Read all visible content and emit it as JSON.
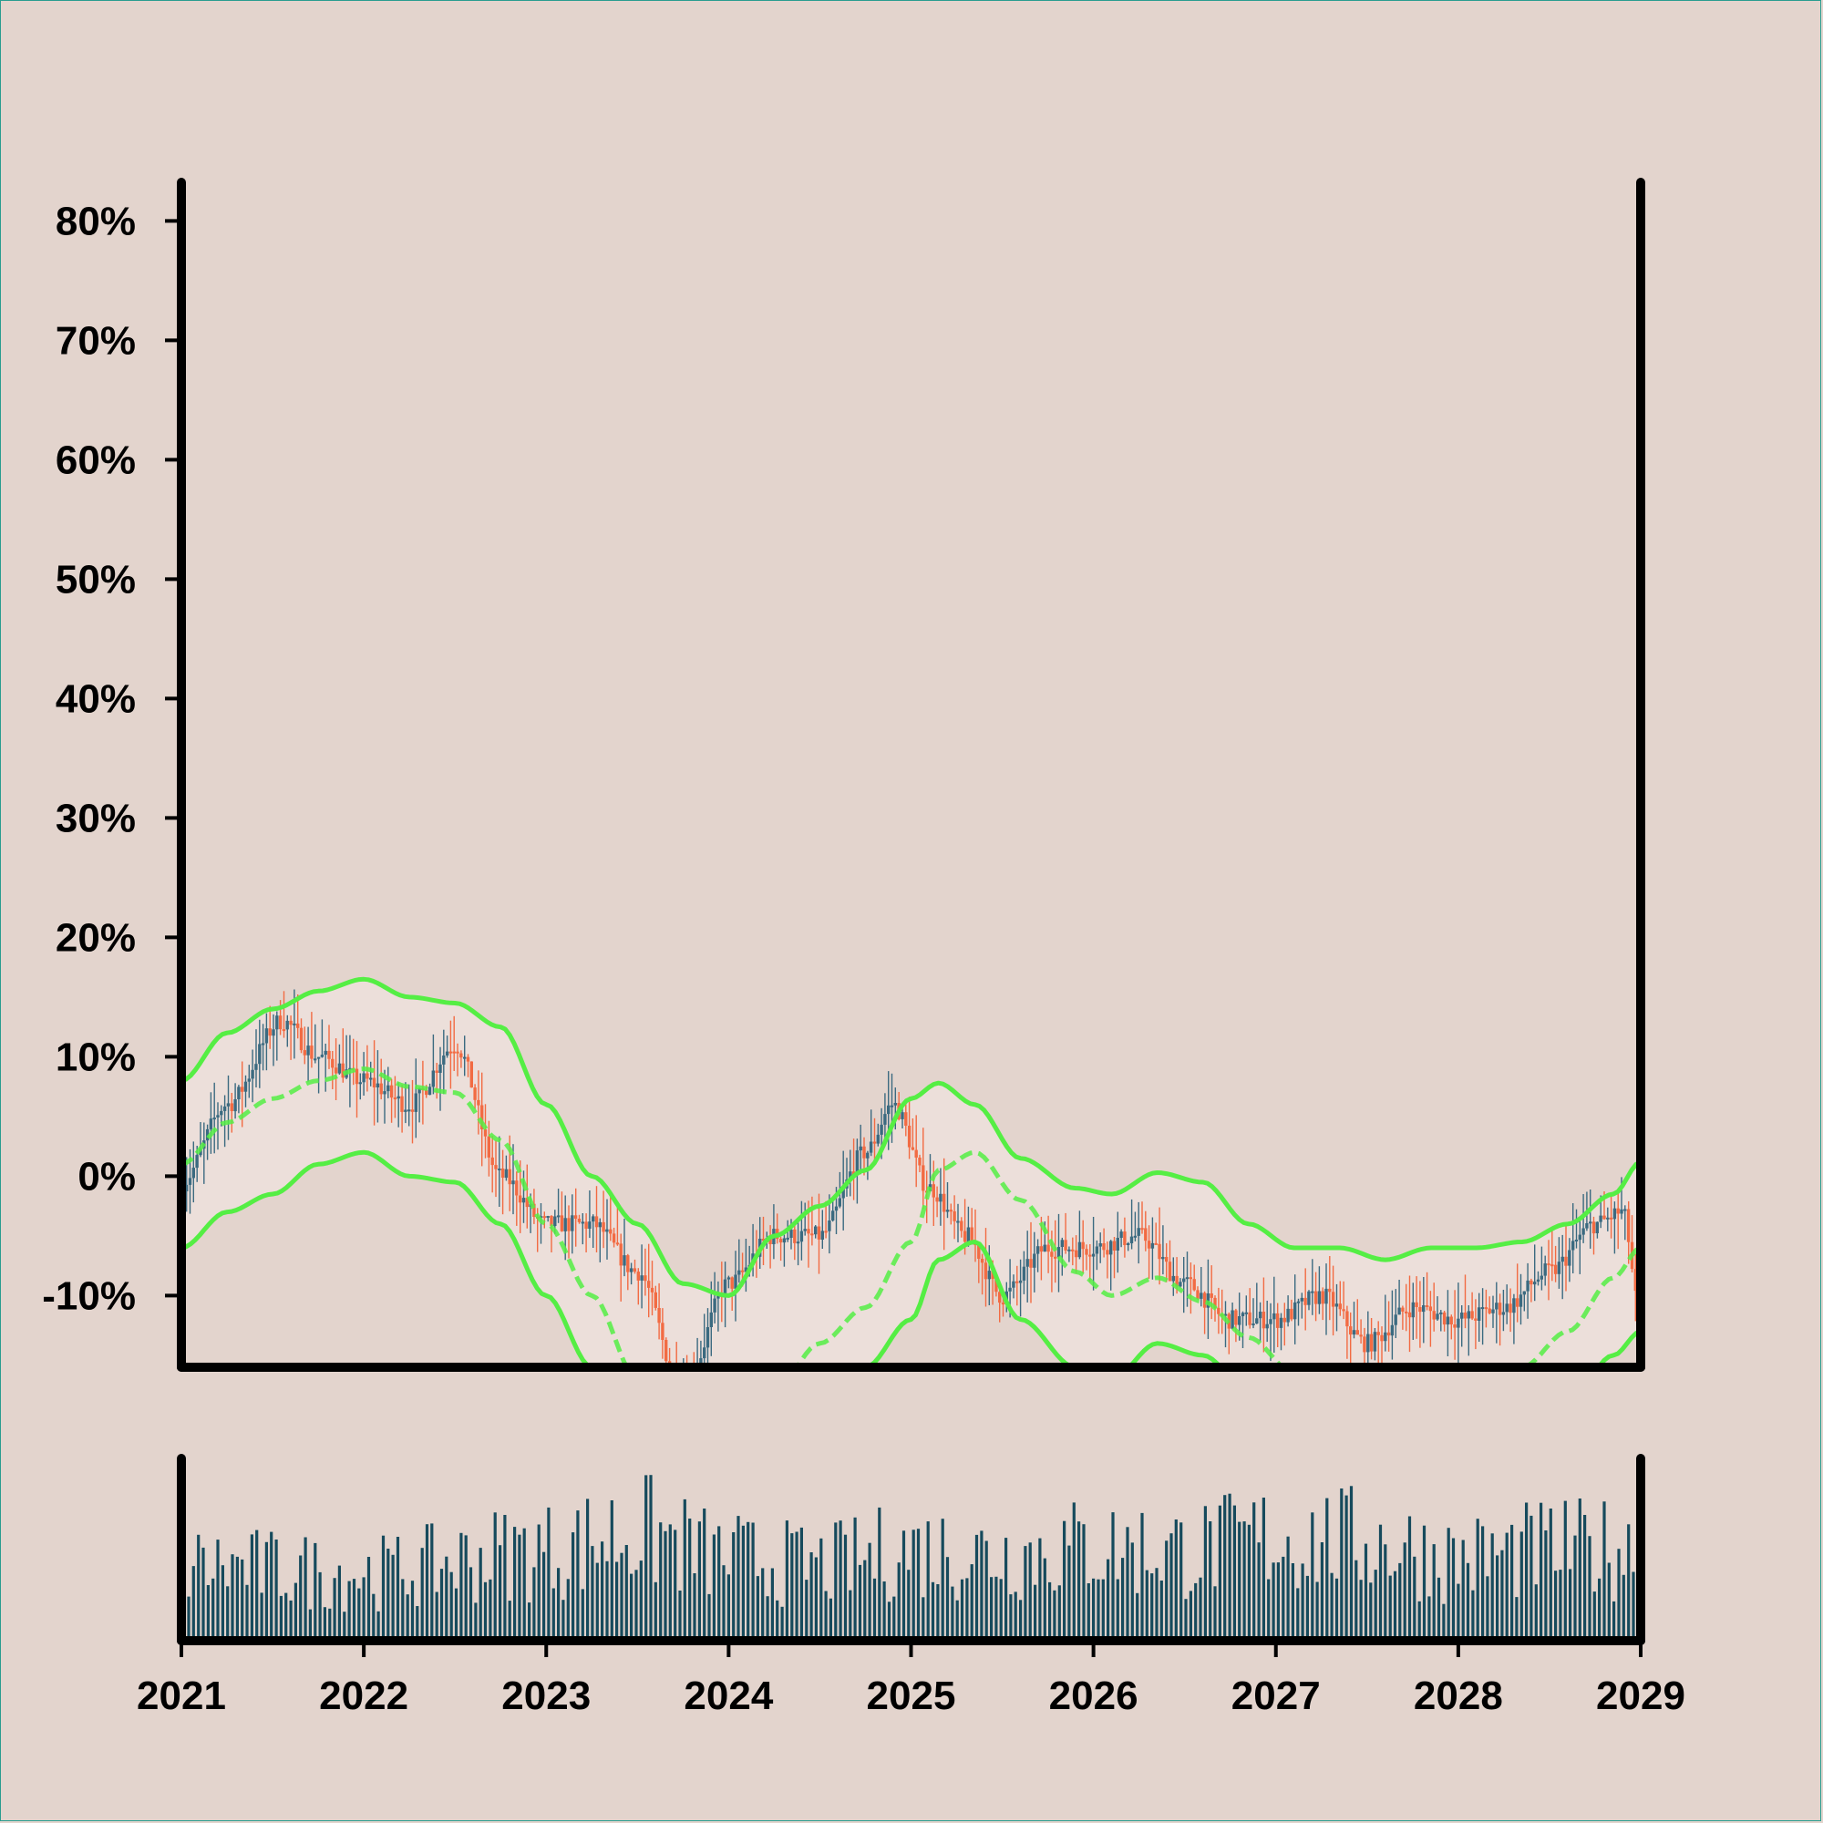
{
  "colors": {
    "background": "#e3d4cd",
    "up": "#3b6a80",
    "down": "#f26b43",
    "bands": "#55ee44",
    "band_fill": "#ecdfda",
    "volume": "#164a5c",
    "axis": "#000000"
  },
  "chart_data": [
    {
      "type": "candlestick",
      "title": "",
      "xlabel": "",
      "ylabel": "",
      "yticks": [
        "-10%",
        "0%",
        "10%",
        "20%",
        "30%",
        "40%",
        "50%",
        "60%",
        "70%",
        "80%"
      ],
      "ylim": [
        -16,
        84
      ],
      "xlim": [
        2021,
        2029
      ],
      "grid": false,
      "legend": "none",
      "price_anchors": {
        "x": [
          2021.0,
          2021.25,
          2021.55,
          2021.75,
          2022.0,
          2022.25,
          2022.5,
          2022.75,
          2023.0,
          2023.25,
          2023.5,
          2023.75,
          2024.0,
          2024.25,
          2024.5,
          2024.75,
          2024.9,
          2025.1,
          2025.3,
          2025.5,
          2025.75,
          2026.0,
          2026.25,
          2026.5,
          2026.75,
          2027.0,
          2027.25,
          2027.5,
          2027.75,
          2028.0,
          2028.25,
          2028.5,
          2028.75,
          2028.9,
          2029.0
        ],
        "y": [
          -0.5,
          6,
          13,
          10,
          8,
          6,
          11,
          0,
          -4,
          -4,
          -8,
          -18,
          -9,
          -5,
          -5,
          2,
          6,
          -1,
          -5,
          -10,
          -6,
          -6,
          -5,
          -9,
          -12,
          -12,
          -10,
          -14,
          -11,
          -12,
          -11,
          -8,
          -4,
          -3,
          -12
        ]
      },
      "bollinger_bands": {
        "x": [
          2021.0,
          2021.25,
          2021.5,
          2021.75,
          2022.0,
          2022.25,
          2022.5,
          2022.75,
          2023.0,
          2023.25,
          2023.5,
          2023.75,
          2024.0,
          2024.25,
          2024.5,
          2024.75,
          2025.0,
          2025.15,
          2025.35,
          2025.6,
          2025.9,
          2026.1,
          2026.35,
          2026.6,
          2026.85,
          2027.1,
          2027.35,
          2027.6,
          2027.85,
          2028.1,
          2028.35,
          2028.6,
          2028.85,
          2029.0
        ],
        "upper": [
          8,
          12,
          14,
          15.5,
          16.5,
          15,
          14.5,
          12.5,
          6,
          0,
          -4,
          -9,
          -10,
          -5,
          -2.5,
          0.5,
          6.5,
          7.8,
          6,
          1.5,
          -1,
          -1.5,
          0.3,
          -0.5,
          -4,
          -6,
          -6,
          -7,
          -6,
          -6,
          -5.5,
          -4,
          -1.5,
          1.2
        ],
        "middle": [
          1,
          4.5,
          6.5,
          8,
          9,
          7.5,
          7,
          3,
          -4,
          -10,
          -17,
          -22,
          -22.5,
          -18,
          -14,
          -11,
          -5.5,
          0.5,
          2,
          -2,
          -8,
          -10,
          -8.5,
          -10.5,
          -13.5,
          -16.5,
          -17.5,
          -20,
          -19.5,
          -20,
          -16,
          -13,
          -8.5,
          -6
        ],
        "lower": [
          -6,
          -3,
          -1.5,
          1,
          2,
          0,
          -0.5,
          -4,
          -10,
          -16,
          -22,
          -24,
          -25,
          -21,
          -19,
          -16,
          -12,
          -7,
          -5.5,
          -12,
          -16,
          -17,
          -14,
          -15,
          -18,
          -20,
          -21.5,
          -23,
          -22.5,
          -23,
          -20.5,
          -19,
          -15,
          -13
        ]
      }
    },
    {
      "type": "bar",
      "title": "",
      "xlabel": "",
      "ylabel": "",
      "xticks": [
        "2021",
        "2022",
        "2023",
        "2024",
        "2025",
        "2026",
        "2027",
        "2028",
        "2029"
      ],
      "grid": false,
      "legend": "none",
      "volume_anchors": {
        "x": [
          2021.0,
          2022.0,
          2023.0,
          2023.5,
          2024.0,
          2024.5,
          2025.0,
          2025.5,
          2026.0,
          2026.5,
          2027.0,
          2027.5,
          2028.0,
          2028.5,
          2029.0
        ],
        "y": [
          0.5,
          0.45,
          0.6,
          0.72,
          0.55,
          0.5,
          0.6,
          0.58,
          0.62,
          0.6,
          0.68,
          0.66,
          0.55,
          0.6,
          0.62
        ]
      }
    }
  ]
}
